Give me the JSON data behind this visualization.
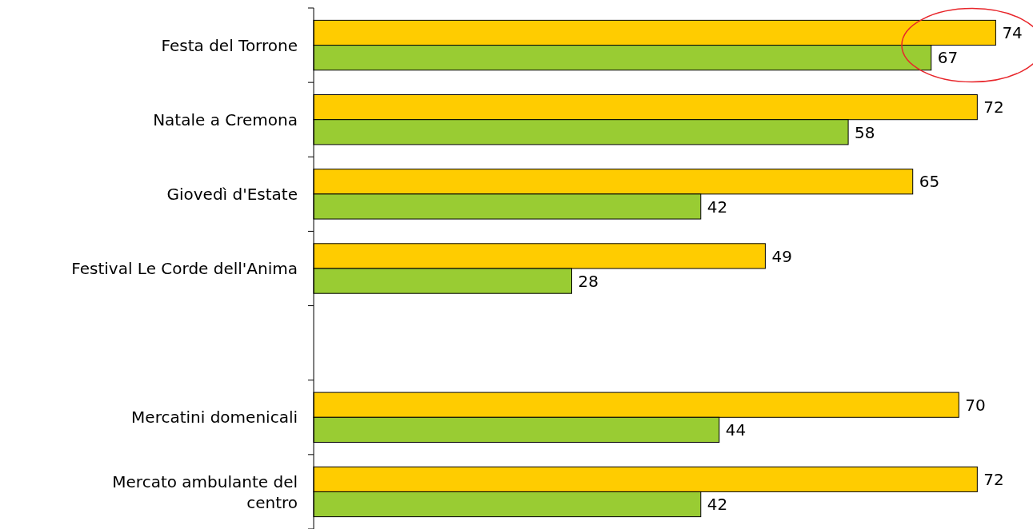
{
  "chart_data": {
    "type": "bar",
    "orientation": "horizontal",
    "categories": [
      "Festa del Torrone",
      "Natale a Cremona",
      "Giovedì d'Estate",
      "Festival Le Corde dell'Anima",
      null,
      "Mercatini domenicali",
      "Mercato ambulante del centro"
    ],
    "series": [
      {
        "color": "#ffcc00",
        "values": [
          74,
          72,
          65,
          49,
          null,
          70,
          72
        ]
      },
      {
        "color": "#99cc33",
        "values": [
          67,
          58,
          42,
          28,
          null,
          44,
          42
        ]
      }
    ],
    "data_labels": true,
    "tick_labels": "y"
  }
}
